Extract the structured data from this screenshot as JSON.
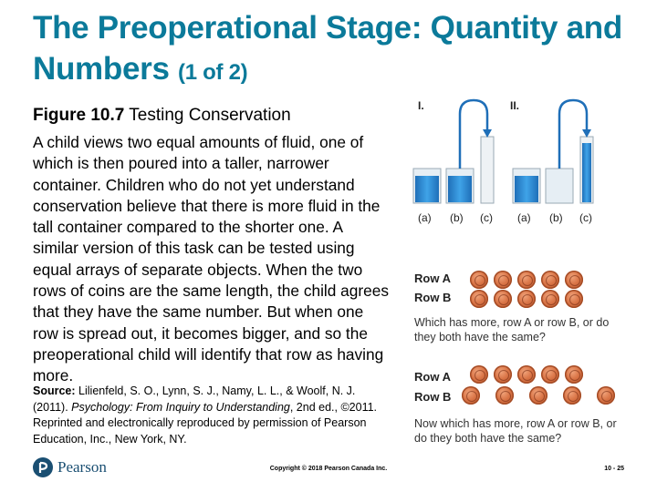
{
  "title": {
    "main": "The Preoperational Stage: Quantity and Numbers",
    "suffix": "(1 of 2)"
  },
  "figure": {
    "label": "Figure 10.7",
    "caption": "Testing Conservation"
  },
  "body": "A child views two equal amounts of fluid, one of which is then poured into a taller, narrower container. Children who do not yet understand conservation believe that there is more fluid in the tall container compared to the shorter one. A similar version of this task can be tested using equal arrays of separate objects. When the two rows of coins are the same length, the child agrees that they have the same number. But when one row is spread out, it becomes bigger, and so the preoperational child will identify that row as having more.",
  "source": {
    "label": "Source:",
    "text_before": "Lilienfeld, S. O., Lynn, S. J., Namy, L. L., & Woolf, N. J. (2011). ",
    "book": "Psychology: From Inquiry to Understanding",
    "text_after": ", 2nd ed., ©2011. Reprinted and electronically reproduced by permission of Pearson Education, Inc., New York, NY."
  },
  "illustration": {
    "panels": [
      {
        "roman": "I.",
        "labels": [
          "(a)",
          "(b)",
          "(c)"
        ]
      },
      {
        "roman": "II.",
        "labels": [
          "(a)",
          "(b)",
          "(c)"
        ]
      }
    ],
    "coins": {
      "set1": {
        "row_a": "Row A",
        "row_b": "Row B",
        "count_a": 5,
        "count_b": 5,
        "question": "Which has more, row A or row B, or do they both have the same?"
      },
      "set2": {
        "row_a": "Row A",
        "row_b": "Row B",
        "count_a": 5,
        "count_b": 5,
        "question": "Now which has more, row A or row B, or do they both have the same?"
      }
    }
  },
  "footer": {
    "logo_text": "Pearson",
    "copyright": "Copyright © 2018 Pearson Canada Inc.",
    "page": "10 - 25"
  },
  "colors": {
    "title": "#0b7a9a",
    "liquid": "#2f8fd6",
    "coin": "#d97446",
    "pearson": "#1a4f72"
  }
}
